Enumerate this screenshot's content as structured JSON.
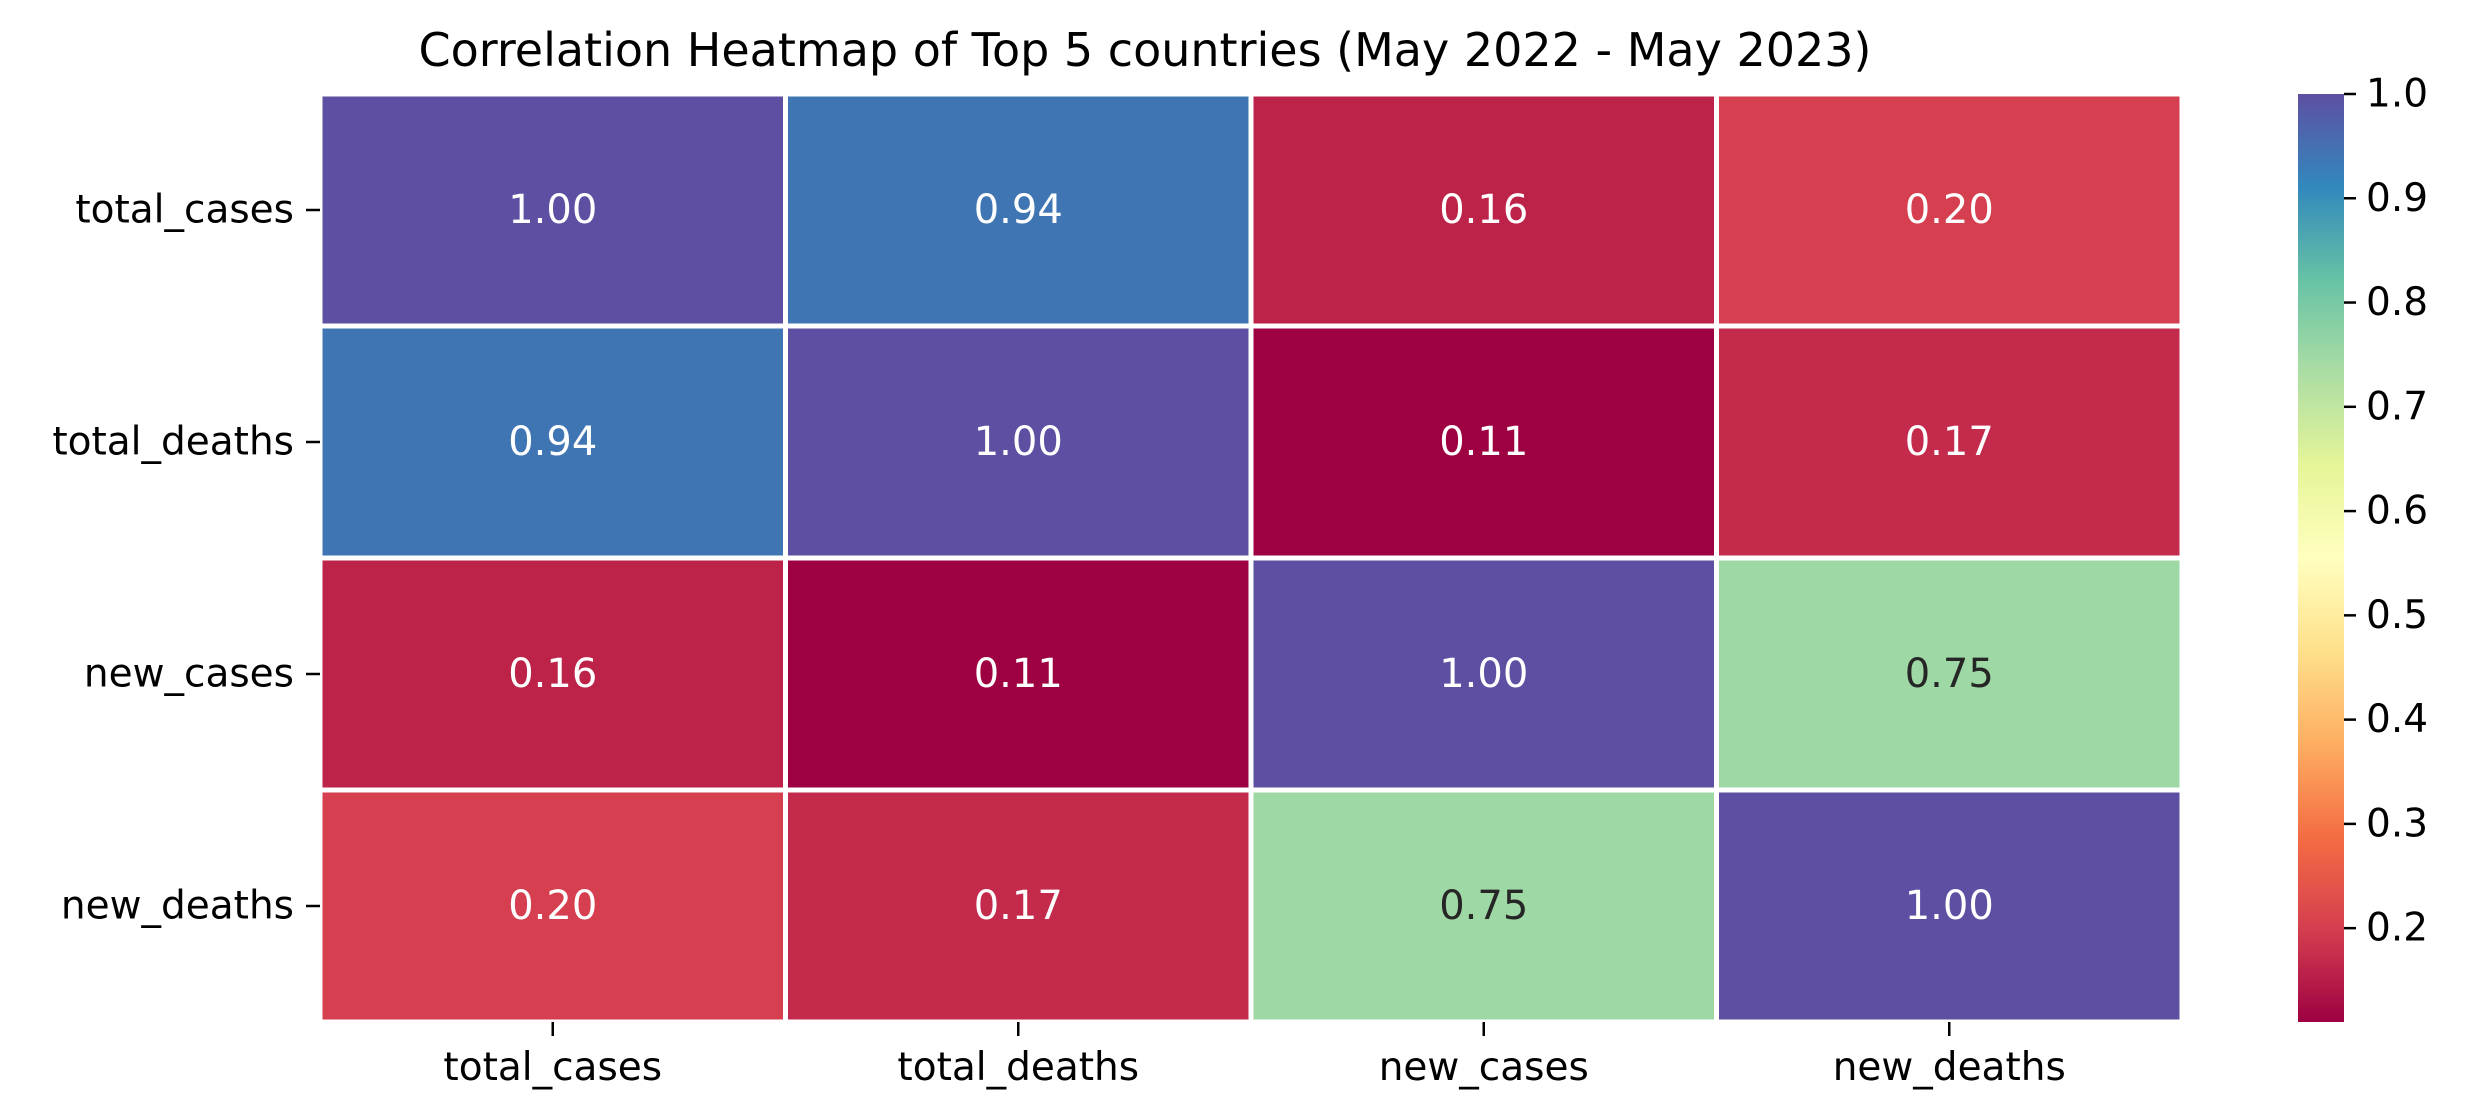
{
  "chart_data": {
    "type": "heatmap",
    "title": "Correlation Heatmap of Top 5 countries (May 2022 - May 2023)",
    "row_labels": [
      "total_cases",
      "total_deaths",
      "new_cases",
      "new_deaths"
    ],
    "col_labels": [
      "total_cases",
      "total_deaths",
      "new_cases",
      "new_deaths"
    ],
    "values": [
      [
        1.0,
        0.94,
        0.16,
        0.2
      ],
      [
        0.94,
        1.0,
        0.11,
        0.17
      ],
      [
        0.16,
        0.11,
        1.0,
        0.75
      ],
      [
        0.2,
        0.17,
        0.75,
        1.0
      ]
    ],
    "value_format": "2 decimals",
    "colormap": "Spectral",
    "vmin": 0.11,
    "vmax": 1.0,
    "colorbar": {
      "ticks": [
        0.2,
        0.3,
        0.4,
        0.5,
        0.6,
        0.7,
        0.8,
        0.9,
        1.0
      ],
      "tick_labels": [
        "0.2",
        "0.3",
        "0.4",
        "0.5",
        "0.6",
        "0.7",
        "0.8",
        "0.9",
        "1.0"
      ]
    },
    "grid": true,
    "legend": "colorbar right"
  }
}
